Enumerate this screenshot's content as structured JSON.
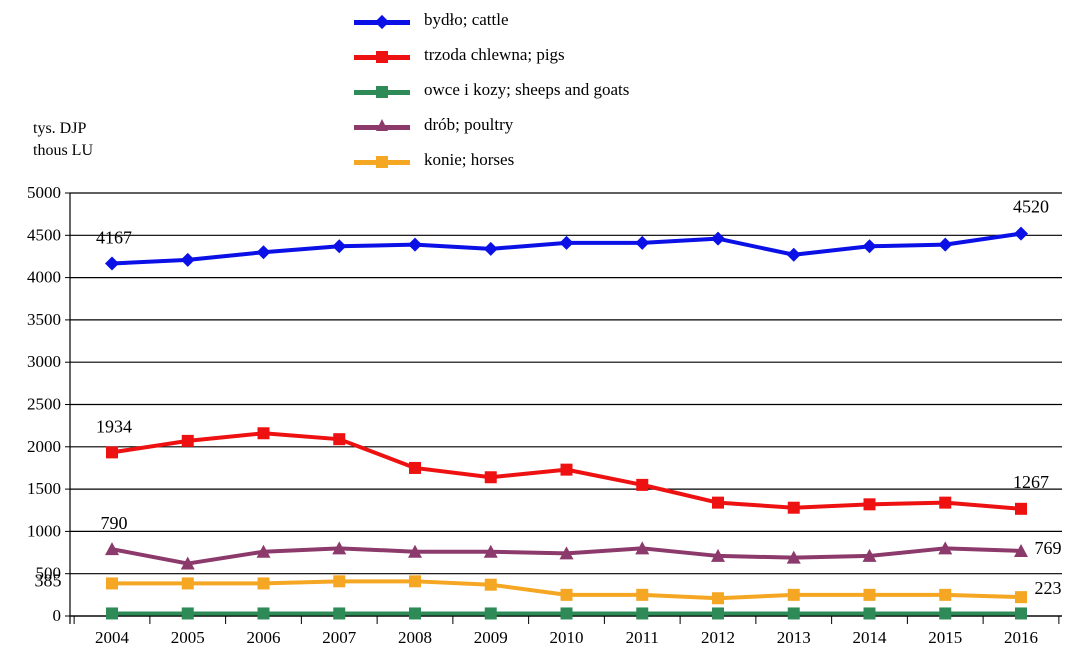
{
  "chart_data": {
    "type": "line",
    "unit_label": [
      "tys. DJP",
      "thous LU"
    ],
    "categories": [
      "2004",
      "2005",
      "2006",
      "2007",
      "2008",
      "2009",
      "2010",
      "2011",
      "2012",
      "2013",
      "2014",
      "2015",
      "2016"
    ],
    "ylim": [
      0,
      5000
    ],
    "yticks": [
      0,
      500,
      1000,
      1500,
      2000,
      2500,
      3000,
      3500,
      4000,
      4500,
      5000
    ],
    "grid": true,
    "legend_position": "top-center",
    "series": [
      {
        "name": "bydło; cattle",
        "color": "#0a10e6",
        "marker": "diamond",
        "values": [
          4167,
          4210,
          4300,
          4370,
          4390,
          4340,
          4410,
          4410,
          4460,
          4270,
          4370,
          4390,
          4520
        ],
        "labels": {
          "first": "4167",
          "last": "4520"
        }
      },
      {
        "name": "trzoda chlewna; pigs",
        "color": "#ee1111",
        "marker": "square",
        "values": [
          1934,
          2070,
          2160,
          2090,
          1750,
          1640,
          1730,
          1550,
          1340,
          1280,
          1320,
          1340,
          1267
        ],
        "labels": {
          "first": "1934",
          "last": "1267"
        }
      },
      {
        "name": "owce i kozy; sheeps and goats",
        "color": "#2e8b57",
        "marker": "square",
        "values": [
          30,
          30,
          30,
          30,
          30,
          30,
          30,
          30,
          30,
          30,
          30,
          30,
          30
        ],
        "labels": {}
      },
      {
        "name": "drób; poultry",
        "color": "#8b3a6b",
        "marker": "triangle",
        "values": [
          790,
          620,
          760,
          800,
          760,
          760,
          740,
          800,
          710,
          690,
          710,
          800,
          769
        ],
        "labels": {
          "first": "790",
          "last": "769"
        }
      },
      {
        "name": "konie; horses",
        "color": "#f5a623",
        "marker": "square",
        "values": [
          385,
          385,
          385,
          410,
          410,
          370,
          250,
          250,
          210,
          250,
          250,
          250,
          223
        ],
        "labels": {
          "first": "385",
          "last": "223"
        }
      }
    ]
  }
}
